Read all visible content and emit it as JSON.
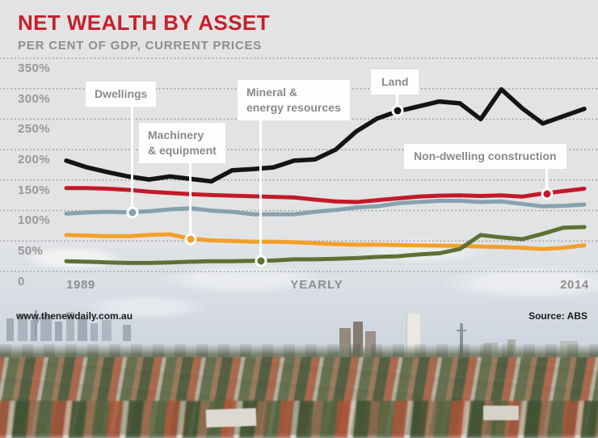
{
  "footer": {
    "site": "www.thenewdaily.com.au",
    "source": "Source: ABS"
  },
  "chart_data": {
    "type": "line",
    "title": "NET WEALTH BY ASSET",
    "subtitle": "PER CENT OF GDP, CURRENT PRICES",
    "x_start_label": "1989",
    "x_axis_label": "YEARLY",
    "x_end_label": "2014",
    "ylim": [
      0,
      350
    ],
    "ytick_labels": [
      "350%",
      "300%",
      "250%",
      "200%",
      "150%",
      "100%",
      "50%",
      "0"
    ],
    "ytick_values": [
      350,
      300,
      250,
      200,
      150,
      100,
      50,
      0
    ],
    "grid": "horizontal-dotted",
    "legend_position": "inline-annotations",
    "years": [
      1989,
      1990,
      1991,
      1992,
      1993,
      1994,
      1995,
      1996,
      1997,
      1998,
      1999,
      2000,
      2001,
      2002,
      2003,
      2004,
      2005,
      2006,
      2007,
      2008,
      2009,
      2010,
      2011,
      2012,
      2013,
      2014
    ],
    "series": [
      {
        "name": "Dwellings",
        "color": "#87a1af",
        "values": [
          95,
          97,
          98,
          97,
          99,
          102,
          104,
          100,
          98,
          94,
          94,
          94,
          98,
          101,
          105,
          107,
          112,
          114,
          116,
          116,
          114,
          115,
          111,
          107,
          108,
          110
        ]
      },
      {
        "name": "Machinery & equipment",
        "color": "#f2a02b",
        "values": [
          60,
          59,
          58,
          58,
          60,
          61,
          54,
          51,
          50,
          49,
          49,
          48,
          46.5,
          45,
          44,
          44,
          43.5,
          43,
          42.5,
          42,
          41,
          40,
          39,
          37,
          39,
          43
        ]
      },
      {
        "name": "Mineral & energy resources",
        "color": "#606f34",
        "values": [
          17,
          16,
          15,
          14,
          14,
          15,
          16,
          17,
          17,
          17.5,
          18,
          20,
          20,
          21,
          22,
          24,
          25,
          28,
          30,
          37,
          60,
          56,
          53,
          62,
          72,
          73
        ]
      },
      {
        "name": "Non-dwelling construction",
        "color": "#c3192a",
        "values": [
          137,
          137,
          136,
          134,
          131,
          129,
          127,
          125.5,
          124.5,
          123.5,
          122.5,
          121.5,
          118,
          115,
          114,
          117,
          120,
          123,
          124.5,
          125,
          124,
          125,
          123,
          128,
          132,
          136
        ]
      },
      {
        "name": "Land",
        "color": "#141414",
        "values": [
          182,
          171,
          163,
          156,
          151,
          156,
          152,
          148,
          166,
          168,
          171,
          182,
          184,
          200,
          230,
          251,
          263,
          271,
          279,
          276,
          250,
          299,
          268,
          243,
          255,
          267
        ]
      }
    ],
    "annotations": [
      {
        "id": "dwellings",
        "label": "Dwellings",
        "series": "Dwellings",
        "year": 1992.2,
        "value": 97
      },
      {
        "id": "machinery",
        "label": "Machinery\n& equipment",
        "series": "Machinery & equipment",
        "year": 1995,
        "value": 53
      },
      {
        "id": "mineral",
        "label": "Mineral &\nenergy resources",
        "series": "Mineral & energy resources",
        "year": 1998.4,
        "value": 17.8
      },
      {
        "id": "land",
        "label": "Land",
        "series": "Land",
        "year": 2005,
        "value": 264
      },
      {
        "id": "nondwelling",
        "label": "Non-dwelling construction",
        "series": "Non-dwelling construction",
        "year": 2012.2,
        "value": 128
      }
    ]
  }
}
